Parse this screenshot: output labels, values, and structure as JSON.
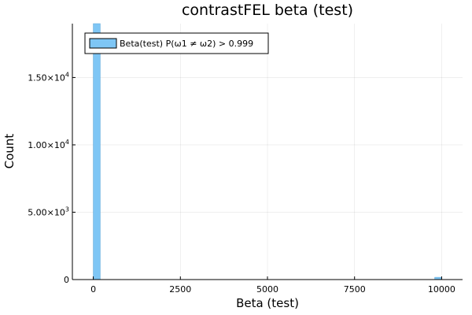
{
  "chart_data": {
    "type": "bar",
    "title": "contrastFEL beta (test)",
    "xlabel": "Beta (test)",
    "ylabel": "Count",
    "legend": {
      "placement": "top-left",
      "entries": [
        "Beta(test) P(ω1 ≠ ω2) > 0.999"
      ]
    },
    "grid": true,
    "xlim": [
      -600,
      10600
    ],
    "ylim": [
      0,
      19000
    ],
    "x_ticks": [
      {
        "value": 0,
        "label": "0"
      },
      {
        "value": 2500,
        "label": "2500"
      },
      {
        "value": 5000,
        "label": "5000"
      },
      {
        "value": 7500,
        "label": "7500"
      },
      {
        "value": 10000,
        "label": "10000"
      }
    ],
    "y_ticks": [
      {
        "value": 0,
        "mant": "0",
        "exp": ""
      },
      {
        "value": 5000,
        "mant": "5.00×10",
        "exp": "3"
      },
      {
        "value": 10000,
        "mant": "1.00×10",
        "exp": "4"
      },
      {
        "value": 15000,
        "mant": "1.50×10",
        "exp": "4"
      }
    ],
    "series": [
      {
        "name": "Beta(test) P(ω1 ≠ ω2) > 0.999",
        "color": "#7ec6f5",
        "bins": [
          {
            "x0": 0,
            "x1": 200,
            "count": 19000
          },
          {
            "x0": 9800,
            "x1": 10000,
            "count": 170
          }
        ]
      }
    ]
  }
}
